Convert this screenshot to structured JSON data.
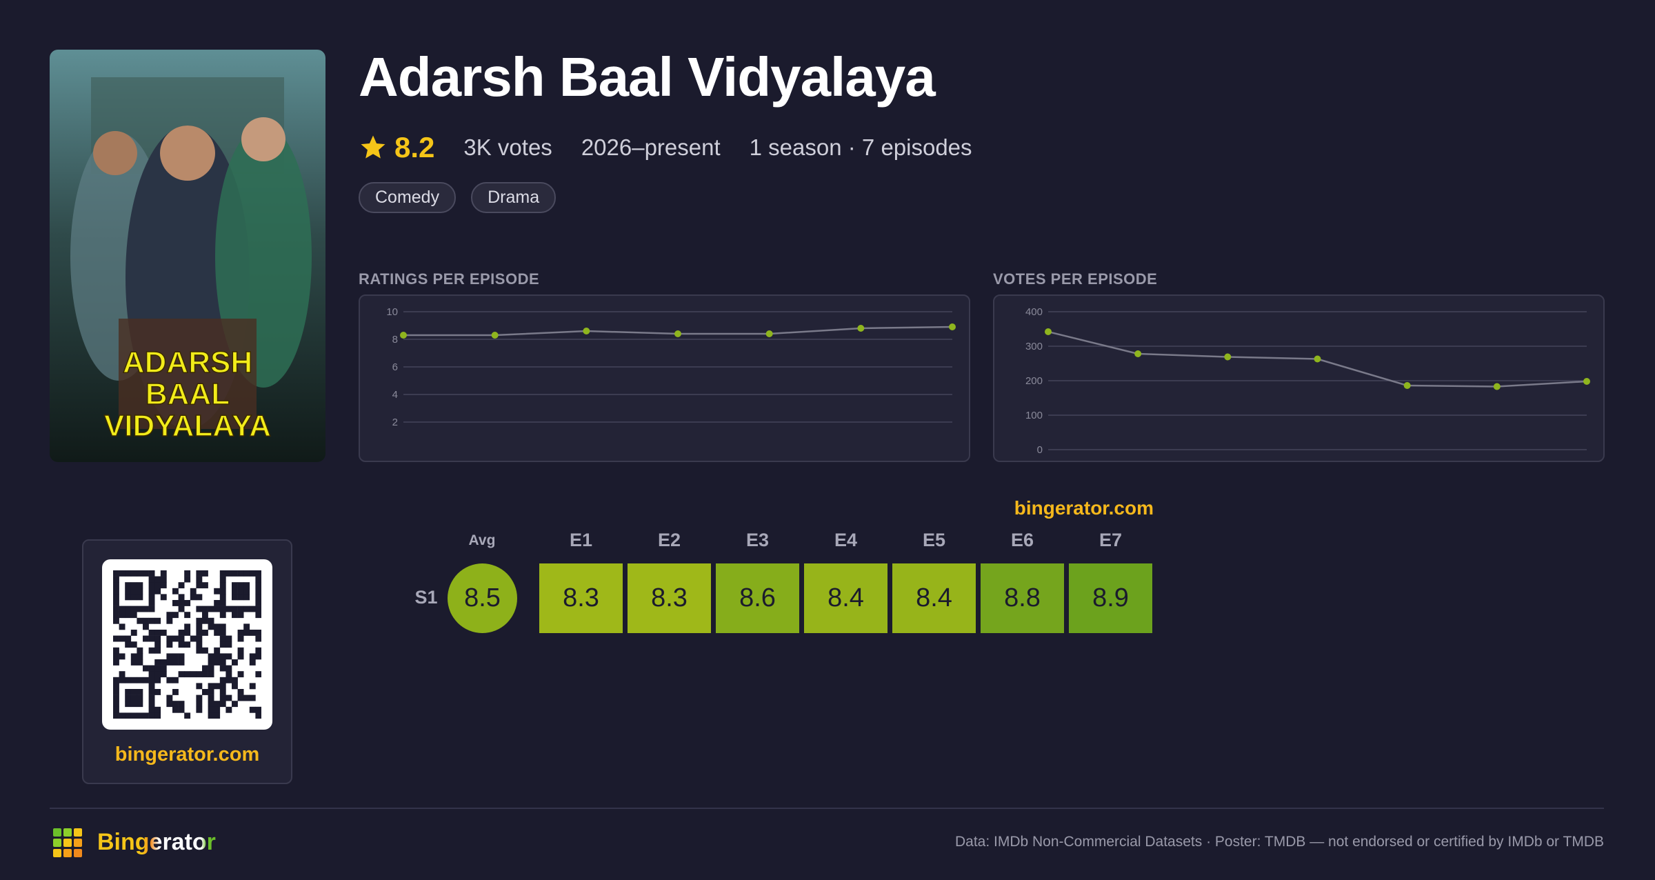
{
  "header": {
    "title": "Adarsh Baal Vidyalaya",
    "rating": "8.2",
    "votes": "3K votes",
    "years": "2026–present",
    "seasons": "1 season · 7 episodes",
    "genres": [
      "Comedy",
      "Drama"
    ]
  },
  "poster": {
    "title_lines": [
      "ADARSH",
      "BAAL",
      "VIDYALAYA"
    ]
  },
  "chart_data": [
    {
      "type": "line",
      "title": "RATINGS PER EPISODE",
      "values": [
        8.3,
        8.3,
        8.6,
        8.4,
        8.4,
        8.8,
        8.9
      ],
      "color": "#8fb51e",
      "ylim": [
        0,
        10
      ],
      "yticks": [
        2,
        4,
        6,
        8,
        10
      ],
      "grid": true
    },
    {
      "type": "line",
      "title": "VOTES PER EPISODE",
      "values": [
        342,
        278,
        269,
        263,
        186,
        183,
        198
      ],
      "color": "#8fb51e",
      "ylim": [
        0,
        400
      ],
      "yticks": [
        0,
        100,
        200,
        300,
        400
      ],
      "grid": true
    }
  ],
  "heatmap": {
    "site": "bingerator.com",
    "avg_label": "Avg",
    "columns": [
      "E1",
      "E2",
      "E3",
      "E4",
      "E5",
      "E6",
      "E7"
    ],
    "rows": [
      {
        "label": "S1",
        "avg": 8.5,
        "values": [
          8.3,
          8.3,
          8.6,
          8.4,
          8.4,
          8.8,
          8.9
        ]
      }
    ]
  },
  "qr": {
    "label": "bingerator.com"
  },
  "footer": {
    "brand": "Bingerator",
    "note": "Data: IMDb Non-Commercial Datasets · Poster: TMDB — not endorsed or certified by IMDb or TMDB"
  }
}
